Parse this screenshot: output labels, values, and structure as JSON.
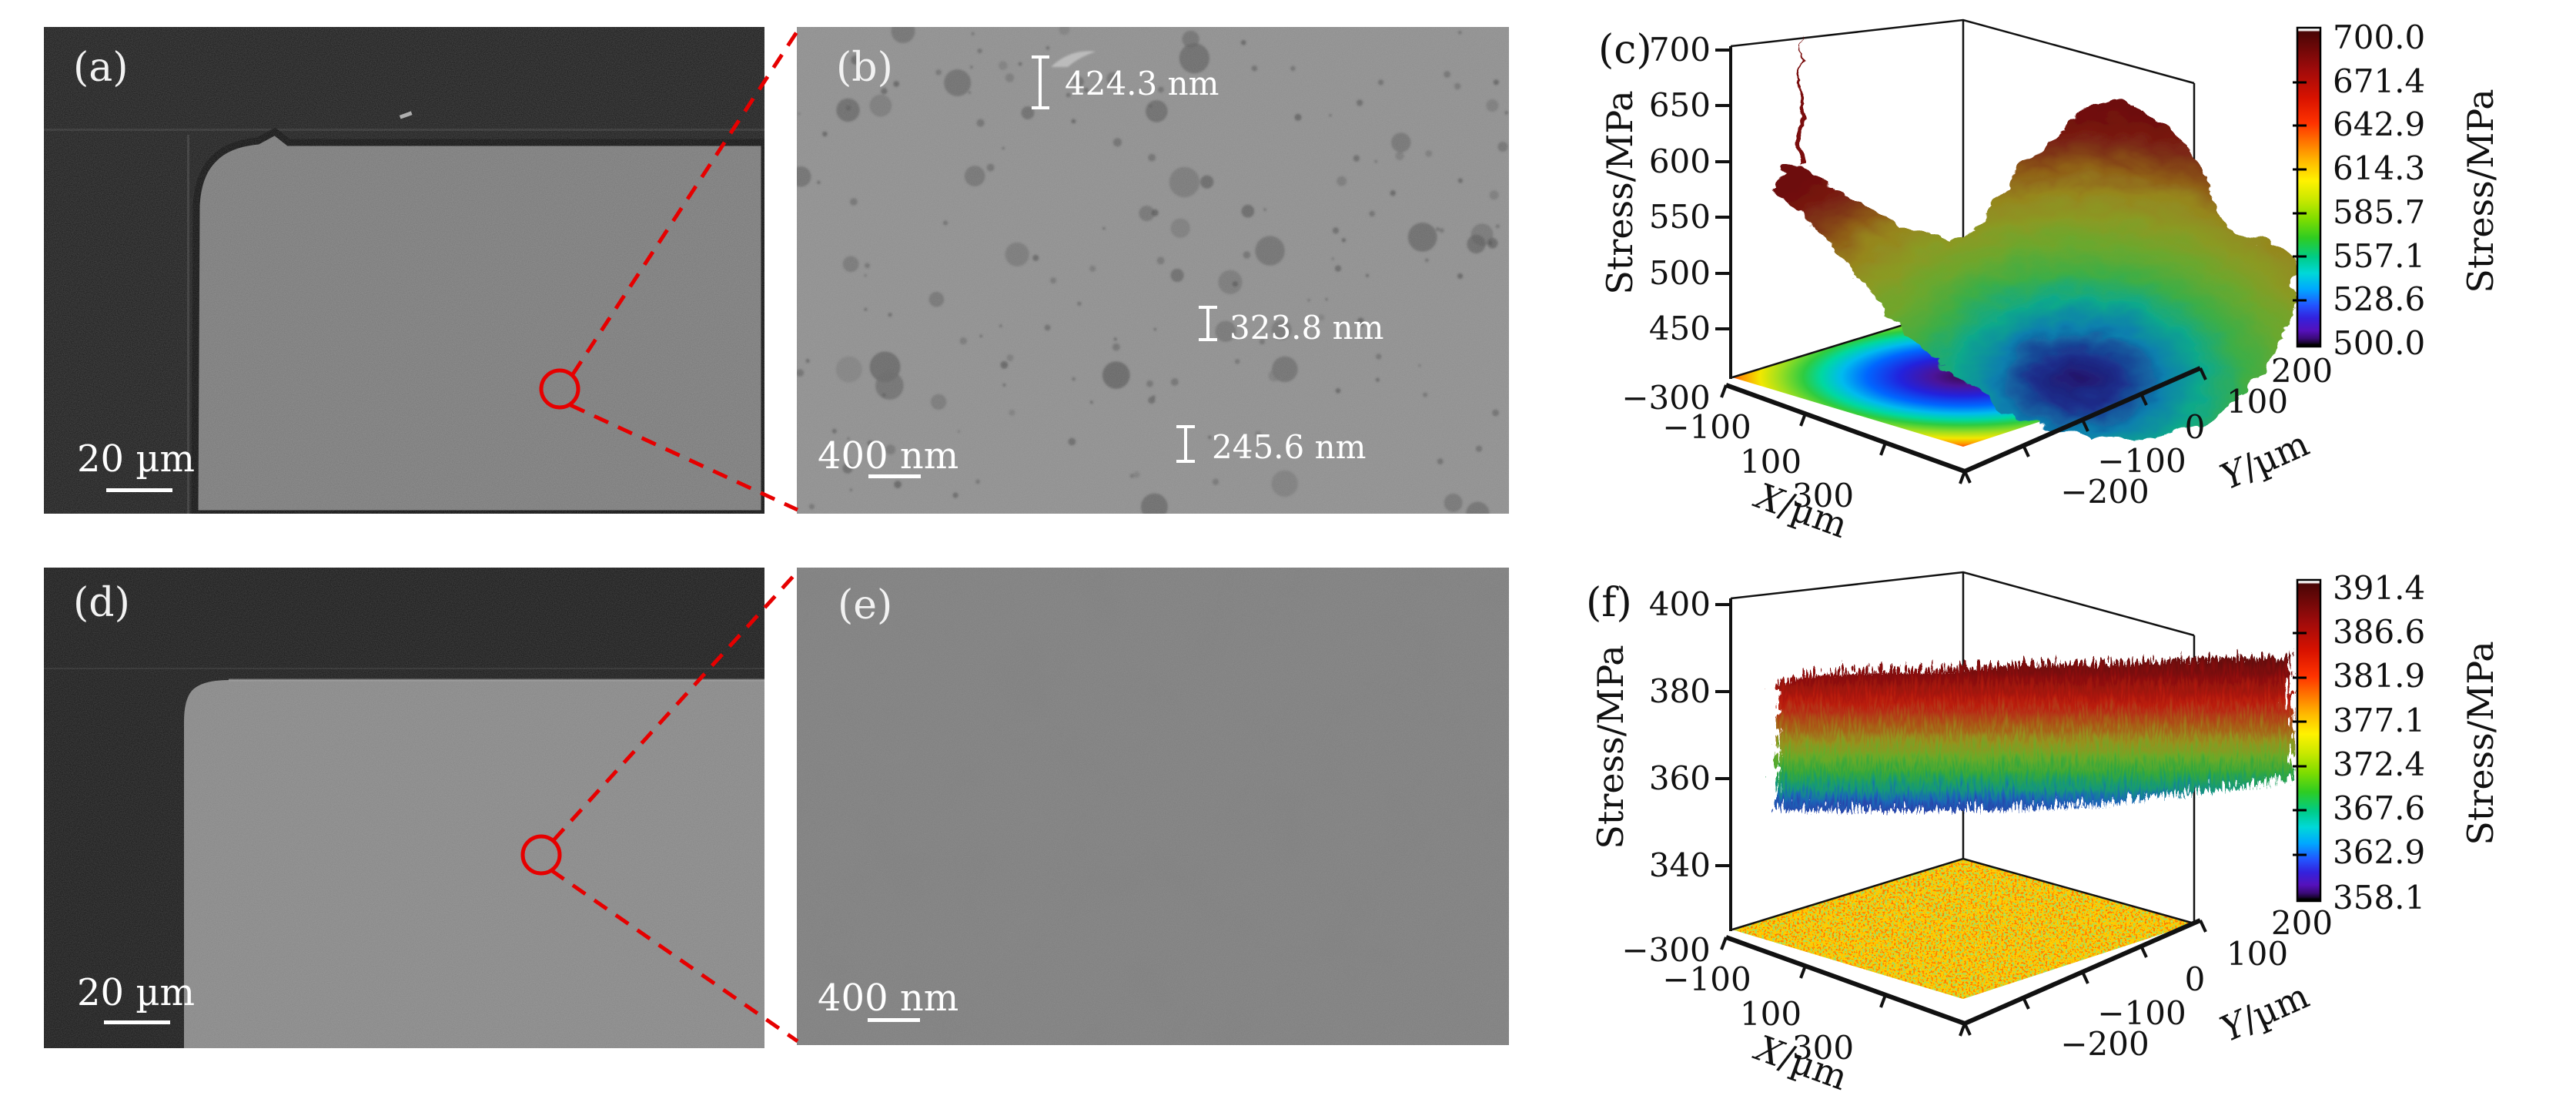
{
  "panels": {
    "a": {
      "label": "(a)",
      "scalebar": "20 µm"
    },
    "b": {
      "label": "(b)",
      "scalebar": "400 nm",
      "measurements": [
        {
          "value": "424.3 nm"
        },
        {
          "value": "323.8 nm"
        },
        {
          "value": "245.6 nm"
        }
      ]
    },
    "c": {
      "label": "(c)"
    },
    "d": {
      "label": "(d)",
      "scalebar": "20 µm"
    },
    "e": {
      "label": "(e)",
      "scalebar": "400 nm"
    },
    "f": {
      "label": "(f)"
    }
  },
  "annotations": {
    "highlight_color": "#e60000"
  },
  "chart_data": [
    {
      "panel": "c",
      "type": "heatmap",
      "plot_style": "3d-surface-with-floor-contour-projection",
      "title": "",
      "xlabel": "X/µm",
      "ylabel": "Y/µm",
      "zlabel": "Stress/MPa",
      "xlim": [
        -300,
        300
      ],
      "ylim": [
        -200,
        200
      ],
      "zlim": [
        400,
        700
      ],
      "x_ticks": [
        -300,
        -100,
        100,
        300
      ],
      "y_ticks": [
        200,
        100,
        0,
        -100,
        -200
      ],
      "z_ticks": [
        700,
        650,
        600,
        550,
        500,
        450
      ],
      "surface_shape": "concave bowl: stress about 500 MPa at center rising to 650-700 MPa at edges and corners; floor projection is concentric rainbow ellipses (purple center to red corners)",
      "colorbar": {
        "label": "Stress/MPa",
        "range": [
          500.0,
          700.0
        ],
        "tick_labels": [
          "700.0",
          "671.4",
          "642.9",
          "614.3",
          "585.7",
          "557.1",
          "528.6",
          "500.0"
        ]
      },
      "axis_labels": {
        "x_var": "X",
        "x_unit": "/µm",
        "y_var": "Y",
        "y_unit": "/µm",
        "z": "Stress/MPa"
      },
      "tick_labels": {
        "z": [
          "700",
          "650",
          "600",
          "550",
          "500",
          "450"
        ],
        "x": [
          "−300",
          "−100",
          "100",
          "300"
        ],
        "y": [
          "200",
          "100",
          "0",
          "−100",
          "−200"
        ]
      }
    },
    {
      "panel": "f",
      "type": "heatmap",
      "plot_style": "3d-surface-with-floor-contour-projection",
      "title": "",
      "xlabel": "X/µm",
      "ylabel": "Y/µm",
      "zlabel": "Stress/MPa",
      "xlim": [
        -300,
        300
      ],
      "ylim": [
        -200,
        200
      ],
      "zlim": [
        330,
        400
      ],
      "x_ticks": [
        -300,
        -100,
        100,
        300
      ],
      "y_ticks": [
        200,
        100,
        0,
        -100,
        -200
      ],
      "z_ticks": [
        400,
        380,
        360,
        340
      ],
      "surface_shape": "flat noisy sheet: stress fluctuating between about 360 and 390 MPa over the whole area; floor projection is a uniform yellow-green/red speckle",
      "colorbar": {
        "label": "Stress/MPa",
        "range": [
          358.1,
          391.4
        ],
        "tick_labels": [
          "391.4",
          "386.6",
          "381.9",
          "377.1",
          "372.4",
          "367.6",
          "362.9",
          "358.1"
        ]
      },
      "axis_labels": {
        "x_var": "X",
        "x_unit": "/µm",
        "y_var": "Y",
        "y_unit": "/µm",
        "z": "Stress/MPa"
      },
      "tick_labels": {
        "z": [
          "400",
          "380",
          "360",
          "340"
        ],
        "x": [
          "−300",
          "−100",
          "100",
          "300"
        ],
        "y": [
          "200",
          "100",
          "0",
          "−100",
          "−200"
        ]
      }
    }
  ]
}
